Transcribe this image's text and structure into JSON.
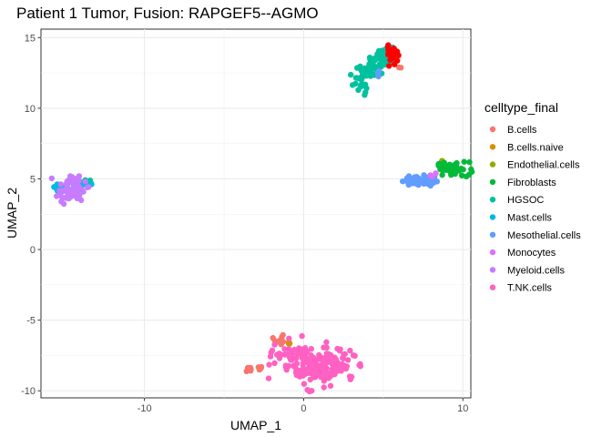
{
  "chart_data": {
    "type": "scatter",
    "title": "Patient 1 Tumor, Fusion:  RAPGEF5--AGMO",
    "xlabel": "UMAP_1",
    "ylabel": "UMAP_2",
    "xlim": [
      -16.5,
      10.5
    ],
    "ylim": [
      -10.5,
      15.6
    ],
    "xticks": [
      -10,
      0,
      10
    ],
    "yticks": [
      -10,
      -5,
      0,
      5,
      10,
      15
    ],
    "grid": true,
    "legend_position": "right",
    "legend_title": "celltype_final",
    "highlight": {
      "name": "fusion-positive cells",
      "color": "#ff0000"
    },
    "series": [
      {
        "name": "B.cells",
        "color": "#F8766D",
        "clusters": [
          {
            "cx": -3.4,
            "cy": -8.5,
            "sx": 0.15,
            "sy": 0.08,
            "n": 8
          },
          {
            "cx": -2.7,
            "cy": -8.4,
            "sx": 0.15,
            "sy": 0.08,
            "n": 5
          },
          {
            "cx": -1.6,
            "cy": -6.5,
            "sx": 0.3,
            "sy": 0.15,
            "n": 10
          },
          {
            "cx": 6.0,
            "cy": 12.9,
            "sx": 0.1,
            "sy": 0.1,
            "n": 2
          },
          {
            "cx": 5.0,
            "cy": 14.0,
            "sx": 0.1,
            "sy": 0.1,
            "n": 2
          }
        ]
      },
      {
        "name": "B.cells.naive",
        "color": "#D39200",
        "clusters": [
          {
            "cx": -0.9,
            "cy": -6.7,
            "sx": 0.1,
            "sy": 0.1,
            "n": 3
          }
        ]
      },
      {
        "name": "Endothelial.cells",
        "color": "#93AA00",
        "clusters": [
          {
            "cx": 8.6,
            "cy": 6.0,
            "sx": 0.15,
            "sy": 0.2,
            "n": 5
          }
        ]
      },
      {
        "name": "Fibroblasts",
        "color": "#00BA38",
        "clusters": [
          {
            "cx": 9.4,
            "cy": 5.7,
            "sx": 0.5,
            "sy": 0.25,
            "n": 50
          }
        ]
      },
      {
        "name": "HGSOC",
        "color": "#00C19F",
        "clusters": [
          {
            "cx": 3.6,
            "cy": 11.9,
            "sx": 0.25,
            "sy": 0.5,
            "n": 30
          },
          {
            "cx": 4.5,
            "cy": 12.9,
            "sx": 0.35,
            "sy": 0.35,
            "n": 30
          },
          {
            "cx": 5.1,
            "cy": 13.7,
            "sx": 0.35,
            "sy": 0.3,
            "n": 40
          },
          {
            "cx": -13.5,
            "cy": 4.8,
            "sx": 0.15,
            "sy": 0.1,
            "n": 3
          }
        ]
      },
      {
        "name": "Mast.cells",
        "color": "#00B9E3",
        "clusters": [
          {
            "cx": -15.2,
            "cy": 4.5,
            "sx": 0.3,
            "sy": 0.2,
            "n": 12
          },
          {
            "cx": -14.0,
            "cy": 4.7,
            "sx": 0.4,
            "sy": 0.2,
            "n": 10
          }
        ]
      },
      {
        "name": "Mesothelial.cells",
        "color": "#619CFF",
        "clusters": [
          {
            "cx": 7.2,
            "cy": 4.9,
            "sx": 0.5,
            "sy": 0.2,
            "n": 45
          },
          {
            "cx": 4.6,
            "cy": 12.4,
            "sx": 0.15,
            "sy": 0.15,
            "n": 4
          }
        ]
      },
      {
        "name": "Monocytes",
        "color": "#DB72FB",
        "clusters": [
          {
            "cx": 8.1,
            "cy": 5.3,
            "sx": 0.1,
            "sy": 0.1,
            "n": 3
          }
        ]
      },
      {
        "name": "Myeloid.cells",
        "color": "#C77CFF",
        "clusters": [
          {
            "cx": -14.6,
            "cy": 4.3,
            "sx": 0.45,
            "sy": 0.45,
            "n": 65
          }
        ]
      },
      {
        "name": "T.NK.cells",
        "color": "#FF61C3",
        "clusters": [
          {
            "cx": 0.3,
            "cy": -8.2,
            "sx": 1.0,
            "sy": 0.7,
            "n": 120
          },
          {
            "cx": 2.0,
            "cy": -8.3,
            "sx": 0.6,
            "sy": 0.6,
            "n": 60
          },
          {
            "cx": -0.8,
            "cy": -7.4,
            "sx": 0.6,
            "sy": 0.3,
            "n": 25
          }
        ]
      }
    ]
  }
}
